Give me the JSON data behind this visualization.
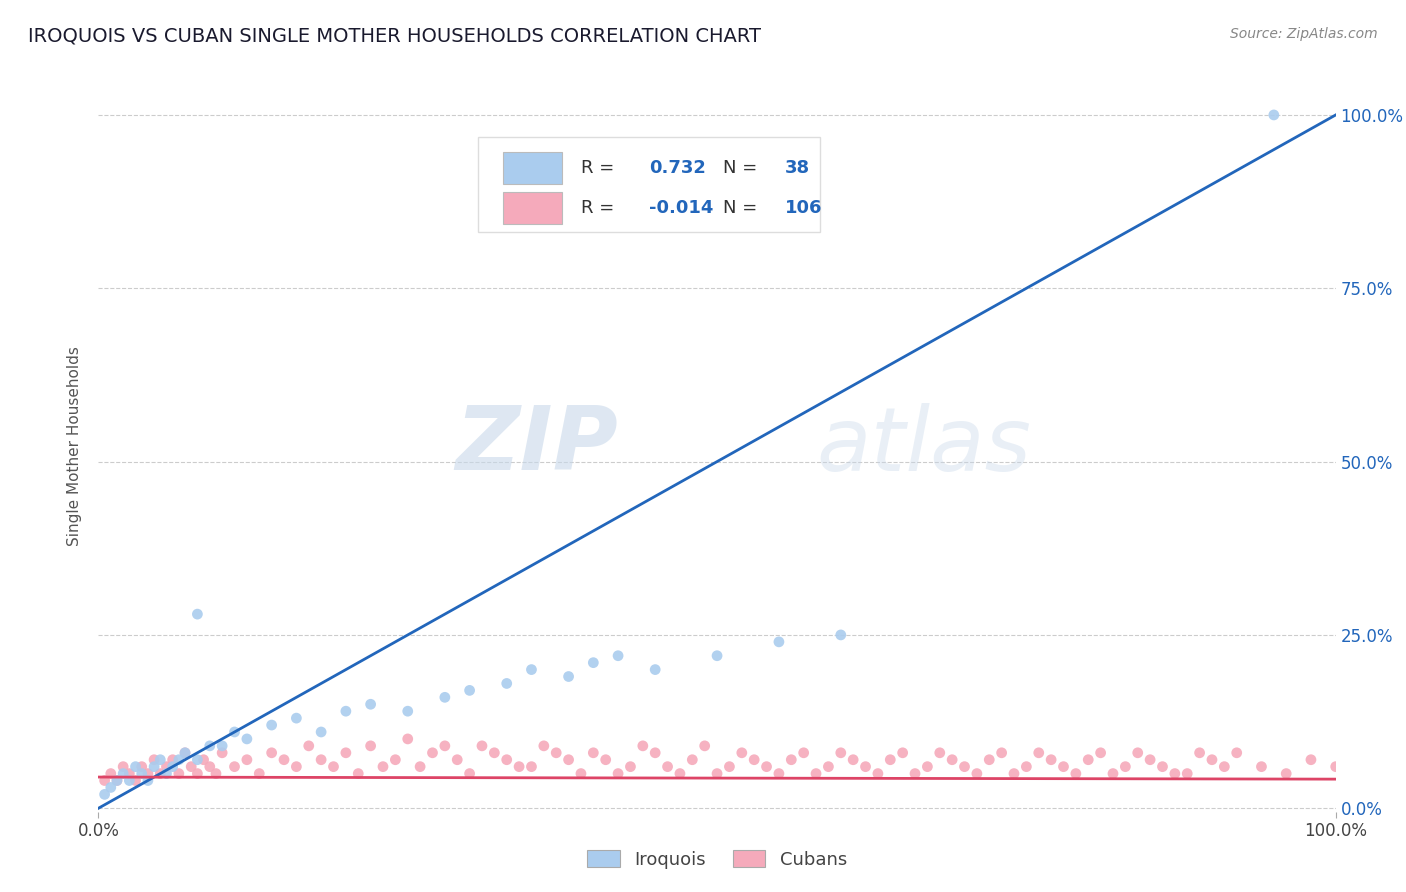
{
  "title": "IROQUOIS VS CUBAN SINGLE MOTHER HOUSEHOLDS CORRELATION CHART",
  "source": "Source: ZipAtlas.com",
  "ylabel": "Single Mother Households",
  "xlim": [
    0.0,
    1.0
  ],
  "ylim": [
    -0.005,
    1.05
  ],
  "ytick_values": [
    0.0,
    0.25,
    0.5,
    0.75,
    1.0
  ],
  "ytick_labels_right": [
    "0.0%",
    "25.0%",
    "50.0%",
    "75.0%",
    "100.0%"
  ],
  "xtick_values": [
    0.0,
    1.0
  ],
  "xtick_labels": [
    "0.0%",
    "100.0%"
  ],
  "iroquois_color": "#aaccee",
  "cubans_color": "#f5aabb",
  "iroquois_line_color": "#2266bb",
  "cubans_line_color": "#dd4466",
  "R_iroquois": "0.732",
  "N_iroquois": "38",
  "R_cubans": "-0.014",
  "N_cubans": "106",
  "watermark_zip": "ZIP",
  "watermark_atlas": "atlas",
  "background_color": "#ffffff",
  "grid_color": "#cccccc",
  "tick_color": "#2266bb",
  "iroquois_line_x": [
    0.0,
    1.0
  ],
  "iroquois_line_y": [
    0.0,
    1.0
  ],
  "cubans_line_x": [
    0.0,
    1.0
  ],
  "cubans_line_y": [
    0.045,
    0.042
  ],
  "iroquois_scatter_x": [
    0.005,
    0.01,
    0.015,
    0.02,
    0.025,
    0.03,
    0.035,
    0.04,
    0.045,
    0.05,
    0.055,
    0.06,
    0.065,
    0.07,
    0.08,
    0.09,
    0.1,
    0.11,
    0.12,
    0.14,
    0.16,
    0.18,
    0.2,
    0.22,
    0.25,
    0.28,
    0.3,
    0.33,
    0.35,
    0.38,
    0.4,
    0.42,
    0.45,
    0.5,
    0.55,
    0.6,
    0.95,
    0.08
  ],
  "iroquois_scatter_y": [
    0.02,
    0.03,
    0.04,
    0.05,
    0.04,
    0.06,
    0.05,
    0.04,
    0.06,
    0.07,
    0.05,
    0.06,
    0.07,
    0.08,
    0.07,
    0.09,
    0.09,
    0.11,
    0.1,
    0.12,
    0.13,
    0.11,
    0.14,
    0.15,
    0.14,
    0.16,
    0.17,
    0.18,
    0.2,
    0.19,
    0.21,
    0.22,
    0.2,
    0.22,
    0.24,
    0.25,
    1.0,
    0.28
  ],
  "cubans_scatter_x": [
    0.005,
    0.01,
    0.015,
    0.02,
    0.025,
    0.03,
    0.035,
    0.04,
    0.045,
    0.05,
    0.055,
    0.06,
    0.065,
    0.07,
    0.075,
    0.08,
    0.085,
    0.09,
    0.095,
    0.1,
    0.11,
    0.12,
    0.13,
    0.14,
    0.15,
    0.16,
    0.17,
    0.18,
    0.19,
    0.2,
    0.21,
    0.22,
    0.23,
    0.24,
    0.25,
    0.26,
    0.27,
    0.28,
    0.29,
    0.3,
    0.32,
    0.34,
    0.36,
    0.38,
    0.4,
    0.42,
    0.44,
    0.46,
    0.48,
    0.5,
    0.52,
    0.54,
    0.56,
    0.58,
    0.6,
    0.62,
    0.64,
    0.66,
    0.68,
    0.7,
    0.72,
    0.74,
    0.76,
    0.78,
    0.8,
    0.82,
    0.84,
    0.86,
    0.88,
    0.9,
    0.92,
    0.94,
    0.96,
    0.98,
    1.0,
    0.31,
    0.33,
    0.35,
    0.37,
    0.39,
    0.41,
    0.43,
    0.45,
    0.47,
    0.49,
    0.51,
    0.53,
    0.55,
    0.57,
    0.59,
    0.61,
    0.63,
    0.65,
    0.67,
    0.69,
    0.71,
    0.73,
    0.75,
    0.77,
    0.79,
    0.81,
    0.83,
    0.85,
    0.87,
    0.89,
    0.91
  ],
  "cubans_scatter_y": [
    0.04,
    0.05,
    0.04,
    0.06,
    0.05,
    0.04,
    0.06,
    0.05,
    0.07,
    0.05,
    0.06,
    0.07,
    0.05,
    0.08,
    0.06,
    0.05,
    0.07,
    0.06,
    0.05,
    0.08,
    0.06,
    0.07,
    0.05,
    0.08,
    0.07,
    0.06,
    0.09,
    0.07,
    0.06,
    0.08,
    0.05,
    0.09,
    0.06,
    0.07,
    0.1,
    0.06,
    0.08,
    0.09,
    0.07,
    0.05,
    0.08,
    0.06,
    0.09,
    0.07,
    0.08,
    0.05,
    0.09,
    0.06,
    0.07,
    0.05,
    0.08,
    0.06,
    0.07,
    0.05,
    0.08,
    0.06,
    0.07,
    0.05,
    0.08,
    0.06,
    0.07,
    0.05,
    0.08,
    0.06,
    0.07,
    0.05,
    0.08,
    0.06,
    0.05,
    0.07,
    0.08,
    0.06,
    0.05,
    0.07,
    0.06,
    0.09,
    0.07,
    0.06,
    0.08,
    0.05,
    0.07,
    0.06,
    0.08,
    0.05,
    0.09,
    0.06,
    0.07,
    0.05,
    0.08,
    0.06,
    0.07,
    0.05,
    0.08,
    0.06,
    0.07,
    0.05,
    0.08,
    0.06,
    0.07,
    0.05,
    0.08,
    0.06,
    0.07,
    0.05,
    0.08,
    0.06
  ]
}
